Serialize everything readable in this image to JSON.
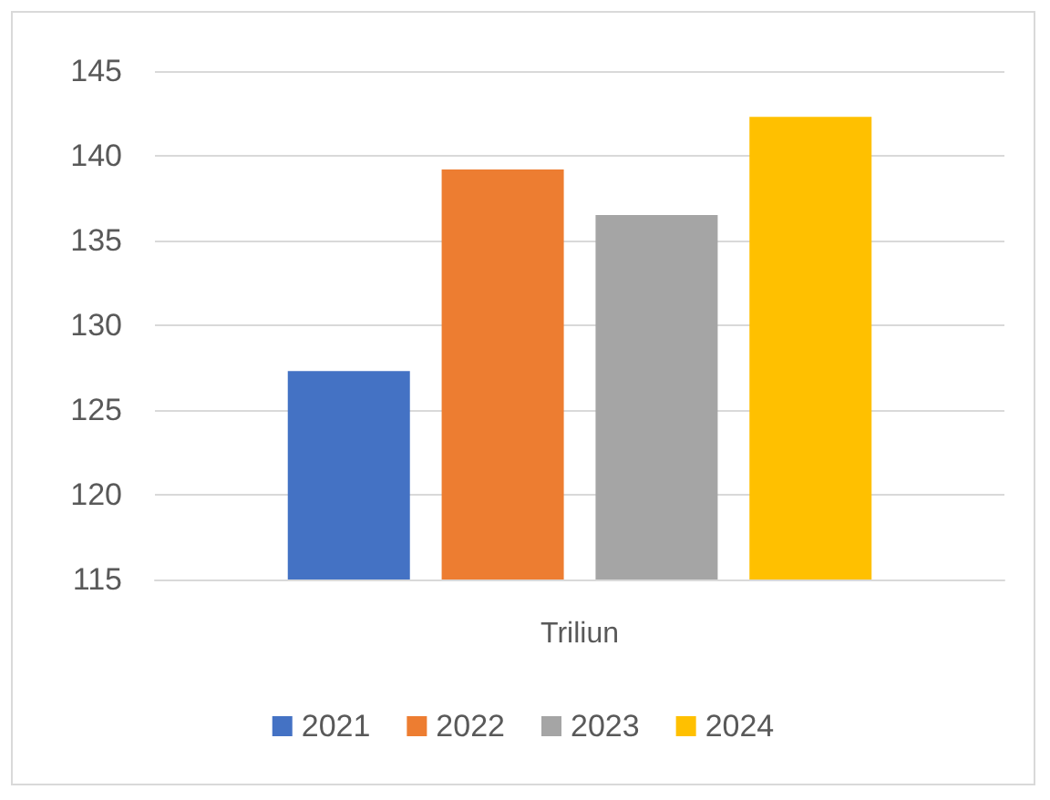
{
  "chart_data": {
    "type": "bar",
    "categories": [
      "Triliun"
    ],
    "series": [
      {
        "name": "2021",
        "color": "#4472c4",
        "values": [
          127.3
        ]
      },
      {
        "name": "2022",
        "color": "#ed7d31",
        "values": [
          139.2
        ]
      },
      {
        "name": "2023",
        "color": "#a5a5a5",
        "values": [
          136.5
        ]
      },
      {
        "name": "2024",
        "color": "#ffc000",
        "values": [
          142.3
        ]
      }
    ],
    "ylim": [
      115,
      145
    ],
    "yticks": [
      115,
      120,
      125,
      130,
      135,
      140,
      145
    ],
    "grid": "y",
    "legend": "bottom"
  }
}
